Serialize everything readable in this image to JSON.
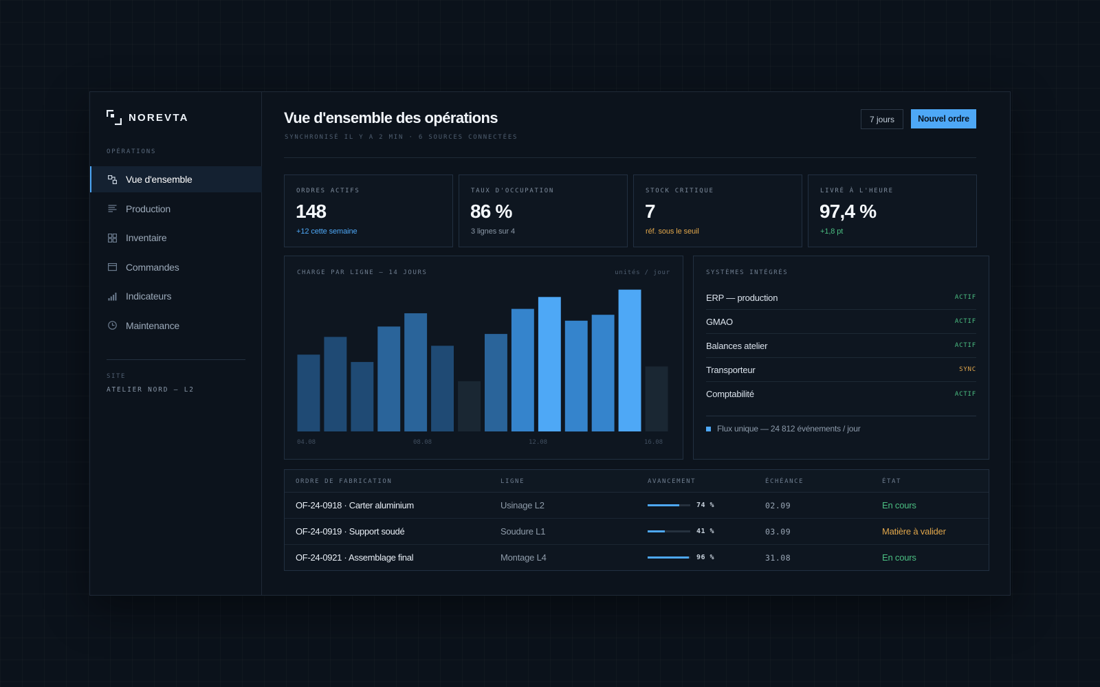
{
  "brand": {
    "name": "NOREVTA"
  },
  "sidebar": {
    "section_label": "OPÉRATIONS",
    "items": [
      {
        "label": "Vue d'ensemble",
        "icon": "overview-icon",
        "active": true
      },
      {
        "label": "Production",
        "icon": "production-icon",
        "active": false
      },
      {
        "label": "Inventaire",
        "icon": "grid-icon",
        "active": false
      },
      {
        "label": "Commandes",
        "icon": "orders-icon",
        "active": false
      },
      {
        "label": "Indicateurs",
        "icon": "bar-chart-icon",
        "active": false
      },
      {
        "label": "Maintenance",
        "icon": "clock-icon",
        "active": false
      }
    ],
    "site_label": "SITE",
    "site_value": "ATELIER NORD — L2"
  },
  "header": {
    "title": "Vue d'ensemble des opérations",
    "subtitle": "SYNCHRONISÉ IL Y A 2 MIN · 6 SOURCES CONNECTÉES",
    "period_button": "7 jours",
    "new_order_button": "Nouvel ordre"
  },
  "kpis": [
    {
      "label": "ORDRES ACTIFS",
      "value": "148",
      "sub": "+12 cette semaine",
      "sub_color": "#4ea8f6"
    },
    {
      "label": "TAUX D'OCCUPATION",
      "value": "86 %",
      "sub": "3 lignes sur 4",
      "sub_color": "#8a97a6"
    },
    {
      "label": "STOCK CRITIQUE",
      "value": "7",
      "sub": "réf. sous le seuil",
      "sub_color": "#e0a64b"
    },
    {
      "label": "LIVRÉ À L'HEURE",
      "value": "97,4 %",
      "sub": "+1,8 pt",
      "sub_color": "#4bbf82"
    }
  ],
  "chart_data": {
    "type": "bar",
    "title": "CHARGE PAR LIGNE — 14 JOURS",
    "unit_label": "unités / jour",
    "values": [
      52,
      64,
      47,
      71,
      80,
      58,
      34,
      66,
      83,
      91,
      75,
      79,
      96,
      44
    ],
    "shades": [
      "#1f4a74",
      "#1f4a74",
      "#1f4a74",
      "#2a649a",
      "#2a649a",
      "#1f4a74",
      "#1a2733",
      "#2a649a",
      "#3584cc",
      "#4ea8f6",
      "#3584cc",
      "#3584cc",
      "#4ea8f6",
      "#1a2733"
    ],
    "x_tick_labels": [
      "04.08",
      "08.08",
      "12.08",
      "16.08"
    ],
    "ylim": [
      0,
      100
    ],
    "grid": false
  },
  "systems": {
    "title": "SYSTÈMES INTÉGRÉS",
    "items": [
      {
        "name": "ERP — production",
        "status": "ACTIF",
        "color": "#4bbf82"
      },
      {
        "name": "GMAO",
        "status": "ACTIF",
        "color": "#4bbf82"
      },
      {
        "name": "Balances atelier",
        "status": "ACTIF",
        "color": "#4bbf82"
      },
      {
        "name": "Transporteur",
        "status": "SYNC",
        "color": "#e0a64b"
      },
      {
        "name": "Comptabilité",
        "status": "ACTIF",
        "color": "#4bbf82"
      }
    ],
    "footer": "Flux unique — 24 812 événements / jour"
  },
  "orders": {
    "columns": [
      "ORDRE DE FABRICATION",
      "LIGNE",
      "AVANCEMENT",
      "ÉCHÉANCE",
      "ÉTAT"
    ],
    "rows": [
      {
        "name": "OF-24-0918 · Carter aluminium",
        "line": "Usinage L2",
        "progress": 74,
        "progress_label": "74 %",
        "due": "02.09",
        "state": "En cours",
        "state_color": "#4bbf82"
      },
      {
        "name": "OF-24-0919 · Support soudé",
        "line": "Soudure L1",
        "progress": 41,
        "progress_label": "41 %",
        "due": "03.09",
        "state": "Matière à valider",
        "state_color": "#e0a64b"
      },
      {
        "name": "OF-24-0921 · Assemblage final",
        "line": "Montage L4",
        "progress": 96,
        "progress_label": "96 %",
        "due": "31.08",
        "state": "En cours",
        "state_color": "#4bbf82"
      }
    ]
  }
}
